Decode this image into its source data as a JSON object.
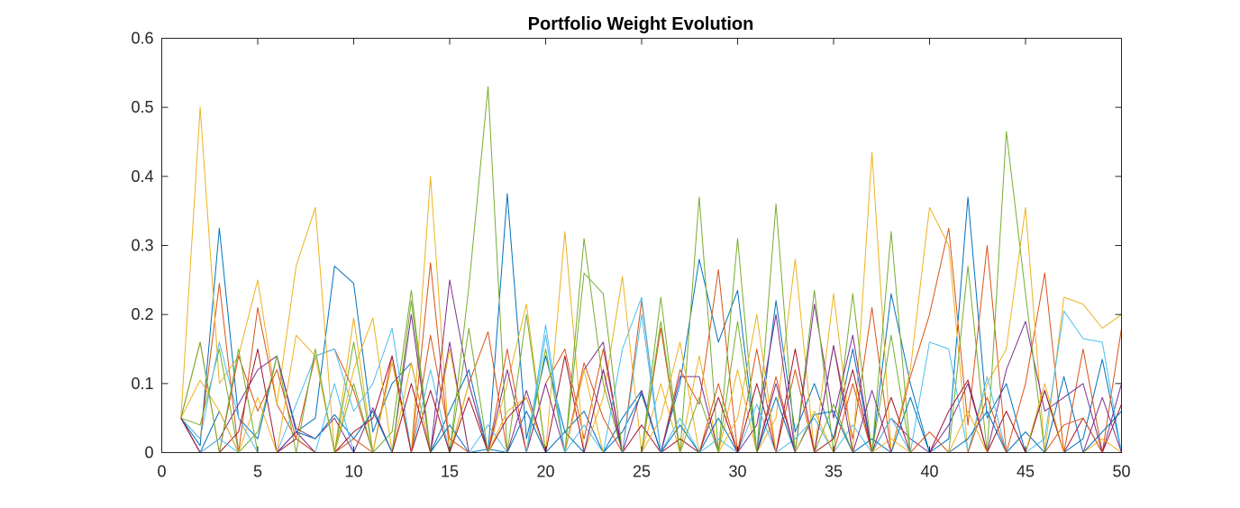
{
  "chart_data": {
    "type": "line",
    "title": "Portfolio Weight Evolution",
    "xlabel": "",
    "ylabel": "",
    "xlim": [
      0,
      50
    ],
    "ylim": [
      0,
      0.6
    ],
    "xticks": [
      0,
      5,
      10,
      15,
      20,
      25,
      30,
      35,
      40,
      45,
      50
    ],
    "yticks": [
      0,
      0.1,
      0.2,
      0.3,
      0.4,
      0.5,
      0.6
    ],
    "xtick_labels": [
      "0",
      "5",
      "10",
      "15",
      "20",
      "25",
      "30",
      "35",
      "40",
      "45",
      "50"
    ],
    "ytick_labels": [
      "0",
      "0.1",
      "0.2",
      "0.3",
      "0.4",
      "0.5",
      "0.6"
    ],
    "grid": false,
    "legend": "none",
    "x": [
      1,
      2,
      3,
      4,
      5,
      6,
      7,
      8,
      9,
      10,
      11,
      12,
      13,
      14,
      15,
      16,
      17,
      18,
      19,
      20,
      21,
      22,
      23,
      24,
      25,
      26,
      27,
      28,
      29,
      30,
      31,
      32,
      33,
      34,
      35,
      36,
      37,
      38,
      39,
      40,
      41,
      42,
      43,
      44,
      45,
      46,
      47,
      48,
      49,
      50
    ],
    "series": [
      {
        "color": "#0072BD",
        "values": [
          0.05,
          0.01,
          0.325,
          0.05,
          0.02,
          0.14,
          0.03,
          0.05,
          0.27,
          0.245,
          0.03,
          0.1,
          0.13,
          0.0,
          0.06,
          0.12,
          0.0,
          0.375,
          0.02,
          0.14,
          0.03,
          0.06,
          0.0,
          0.05,
          0.09,
          0.0,
          0.1,
          0.28,
          0.16,
          0.235,
          0.0,
          0.22,
          0.03,
          0.1,
          0.02,
          0.15,
          0.0,
          0.23,
          0.1,
          0.0,
          0.02,
          0.37,
          0.05,
          0.1,
          0.0,
          0.09,
          0.0,
          0.02,
          0.135,
          0.0
        ]
      },
      {
        "color": "#D95319",
        "values": [
          0.05,
          0.02,
          0.245,
          0.0,
          0.21,
          0.07,
          0.02,
          0.14,
          0.15,
          0.09,
          0.0,
          0.14,
          0.0,
          0.275,
          0.0,
          0.1,
          0.175,
          0.0,
          0.0,
          0.1,
          0.15,
          0.02,
          0.15,
          0.0,
          0.22,
          0.0,
          0.12,
          0.07,
          0.265,
          0.0,
          0.15,
          0.0,
          0.12,
          0.0,
          0.155,
          0.02,
          0.21,
          0.0,
          0.11,
          0.2,
          0.325,
          0.04,
          0.3,
          0.0,
          0.1,
          0.26,
          0.0,
          0.15,
          0.0,
          0.18
        ]
      },
      {
        "color": "#EDB120",
        "values": [
          0.05,
          0.5,
          0.1,
          0.14,
          0.25,
          0.07,
          0.27,
          0.355,
          0.0,
          0.195,
          0.0,
          0.13,
          0.0,
          0.4,
          0.0,
          0.1,
          0.0,
          0.1,
          0.215,
          0.0,
          0.32,
          0.0,
          0.08,
          0.255,
          0.0,
          0.1,
          0.0,
          0.14,
          0.0,
          0.12,
          0.0,
          0.05,
          0.28,
          0.0,
          0.23,
          0.0,
          0.435,
          0.0,
          0.12,
          0.355,
          0.3,
          0.0,
          0.1,
          0.15,
          0.355,
          0.0,
          0.225,
          0.215,
          0.18,
          0.2
        ]
      },
      {
        "color": "#7E2F8E",
        "values": [
          0.05,
          0.0,
          0.02,
          0.07,
          0.12,
          0.14,
          0.035,
          0.02,
          0.05,
          0.0,
          0.065,
          0.0,
          0.2,
          0.0,
          0.25,
          0.1,
          0.0,
          0.12,
          0.0,
          0.1,
          0.0,
          0.12,
          0.16,
          0.0,
          0.09,
          0.0,
          0.11,
          0.11,
          0.0,
          0.0,
          0.04,
          0.2,
          0.0,
          0.215,
          0.05,
          0.17,
          0.0,
          0.05,
          0.02,
          0.0,
          0.04,
          0.1,
          0.0,
          0.12,
          0.19,
          0.06,
          0.08,
          0.1,
          0.0,
          0.1
        ]
      },
      {
        "color": "#77AC30",
        "values": [
          0.05,
          0.04,
          0.15,
          0.0,
          0.03,
          0.14,
          0.0,
          0.0,
          0.0,
          0.1,
          0.0,
          0.03,
          0.235,
          0.0,
          0.0,
          0.24,
          0.53,
          0.0,
          0.2,
          0.0,
          0.0,
          0.31,
          0.1,
          0.0,
          0.0,
          0.225,
          0.0,
          0.37,
          0.0,
          0.31,
          0.0,
          0.36,
          0.0,
          0.235,
          0.0,
          0.23,
          0.0,
          0.32,
          0.0,
          0.0,
          0.0,
          0.27,
          0.0,
          0.465,
          0.23,
          0.0,
          0.0,
          0.0,
          0.0,
          0.0
        ]
      },
      {
        "color": "#4DBEEE",
        "values": [
          0.05,
          0.02,
          0.16,
          0.05,
          0.0,
          0.0,
          0.07,
          0.14,
          0.15,
          0.06,
          0.1,
          0.18,
          0.0,
          0.12,
          0.0,
          0.0,
          0.04,
          0.0,
          0.0,
          0.185,
          0.0,
          0.04,
          0.0,
          0.15,
          0.225,
          0.0,
          0.05,
          0.0,
          0.02,
          0.0,
          0.07,
          0.0,
          0.02,
          0.05,
          0.0,
          0.04,
          0.0,
          0.05,
          0.0,
          0.16,
          0.15,
          0.0,
          0.11,
          0.0,
          0.0,
          0.02,
          0.205,
          0.165,
          0.16,
          0.0
        ]
      },
      {
        "color": "#A2142F",
        "values": [
          0.05,
          0.0,
          0.0,
          0.03,
          0.15,
          0.0,
          0.02,
          0.0,
          0.0,
          0.03,
          0.05,
          0.14,
          0.0,
          0.09,
          0.0,
          0.08,
          0.0,
          0.05,
          0.08,
          0.0,
          0.14,
          0.0,
          0.12,
          0.0,
          0.04,
          0.0,
          0.02,
          0.0,
          0.08,
          0.0,
          0.1,
          0.0,
          0.15,
          0.0,
          0.02,
          0.12,
          0.0,
          0.08,
          0.0,
          0.0,
          0.06,
          0.105,
          0.0,
          0.06,
          0.0,
          0.09,
          0.0,
          0.05,
          0.0,
          0.07
        ]
      },
      {
        "color": "#0072BD",
        "values": [
          0.05,
          0.0,
          0.06,
          0.0,
          0.0,
          0.0,
          0.03,
          0.02,
          0.055,
          0.02,
          0.06,
          0.0,
          0.0,
          0.0,
          0.04,
          0.0,
          0.005,
          0.0,
          0.06,
          0.0,
          0.03,
          0.0,
          0.0,
          0.03,
          0.085,
          0.0,
          0.04,
          0.0,
          0.05,
          0.0,
          0.0,
          0.08,
          0.0,
          0.055,
          0.06,
          0.0,
          0.02,
          0.0,
          0.08,
          0.0,
          0.0,
          0.02,
          0.06,
          0.0,
          0.03,
          0.0,
          0.11,
          0.0,
          0.03,
          0.06
        ]
      },
      {
        "color": "#D95319",
        "values": [
          0.05,
          0.16,
          0.0,
          0.14,
          0.06,
          0.12,
          0.02,
          0.0,
          0.0,
          0.02,
          0.0,
          0.0,
          0.0,
          0.17,
          0.02,
          0.0,
          0.0,
          0.15,
          0.0,
          0.0,
          0.0,
          0.13,
          0.05,
          0.0,
          0.0,
          0.18,
          0.0,
          0.0,
          0.1,
          0.0,
          0.0,
          0.11,
          0.0,
          0.0,
          0.0,
          0.1,
          0.0,
          0.0,
          0.0,
          0.03,
          0.0,
          0.0,
          0.08,
          0.0,
          0.0,
          0.0,
          0.04,
          0.05,
          0.0,
          0.0
        ]
      },
      {
        "color": "#EDB120",
        "values": [
          0.05,
          0.105,
          0.06,
          0.0,
          0.08,
          0.0,
          0.17,
          0.14,
          0.0,
          0.12,
          0.195,
          0.0,
          0.13,
          0.0,
          0.15,
          0.0,
          0.0,
          0.06,
          0.08,
          0.0,
          0.0,
          0.12,
          0.0,
          0.0,
          0.0,
          0.05,
          0.16,
          0.0,
          0.0,
          0.05,
          0.2,
          0.0,
          0.0,
          0.06,
          0.0,
          0.0,
          0.0,
          0.02,
          0.0,
          0.0,
          0.0,
          0.06,
          0.0,
          0.0,
          0.0,
          0.1,
          0.0,
          0.0,
          0.02,
          0.0
        ]
      },
      {
        "color": "#7E2F8E",
        "values": [
          0.05,
          0.0,
          0.0,
          0.0,
          0.0,
          0.0,
          0.03,
          0.0,
          0.0,
          0.0,
          0.0,
          0.0,
          0.0,
          0.0,
          0.16,
          0.0,
          0.0,
          0.0,
          0.09,
          0.0,
          0.0,
          0.0,
          0.12,
          0.0,
          0.0,
          0.0,
          0.0,
          0.0,
          0.0,
          0.0,
          0.0,
          0.1,
          0.0,
          0.0,
          0.155,
          0.0,
          0.09,
          0.0,
          0.0,
          0.0,
          0.0,
          0.0,
          0.0,
          0.0,
          0.0,
          0.0,
          0.0,
          0.0,
          0.08,
          0.0
        ]
      },
      {
        "color": "#77AC30",
        "values": [
          0.05,
          0.16,
          0.0,
          0.15,
          0.0,
          0.0,
          0.0,
          0.15,
          0.0,
          0.16,
          0.0,
          0.0,
          0.22,
          0.0,
          0.0,
          0.18,
          0.0,
          0.0,
          0.0,
          0.15,
          0.0,
          0.26,
          0.23,
          0.0,
          0.0,
          0.19,
          0.0,
          0.08,
          0.0,
          0.19,
          0.0,
          0.0,
          0.0,
          0.0,
          0.07,
          0.0,
          0.0,
          0.17,
          0.0,
          0.0,
          0.0,
          0.0,
          0.0,
          0.0,
          0.0,
          0.0,
          0.0,
          0.0,
          0.0,
          0.0
        ]
      },
      {
        "color": "#4DBEEE",
        "values": [
          0.05,
          0.0,
          0.02,
          0.0,
          0.0,
          0.0,
          0.0,
          0.0,
          0.1,
          0.0,
          0.0,
          0.0,
          0.0,
          0.0,
          0.0,
          0.0,
          0.0,
          0.0,
          0.0,
          0.17,
          0.0,
          0.0,
          0.0,
          0.0,
          0.2,
          0.0,
          0.0,
          0.0,
          0.0,
          0.0,
          0.0,
          0.0,
          0.0,
          0.0,
          0.0,
          0.0,
          0.0,
          0.0,
          0.0,
          0.0,
          0.0,
          0.0,
          0.0,
          0.0,
          0.0,
          0.0,
          0.0,
          0.0,
          0.0,
          0.0
        ]
      },
      {
        "color": "#A2142F",
        "values": [
          0.05,
          0.0,
          0.0,
          0.0,
          0.0,
          0.0,
          0.0,
          0.0,
          0.0,
          0.0,
          0.0,
          0.0,
          0.1,
          0.0,
          0.0,
          0.0,
          0.0,
          0.0,
          0.0,
          0.0,
          0.0,
          0.0,
          0.0,
          0.0,
          0.0,
          0.0,
          0.0,
          0.0,
          0.0,
          0.0,
          0.0,
          0.0,
          0.0,
          0.0,
          0.0,
          0.0,
          0.0,
          0.0,
          0.0,
          0.0,
          0.0,
          0.0,
          0.0,
          0.0,
          0.0,
          0.0,
          0.0,
          0.0,
          0.0,
          0.0
        ]
      }
    ]
  }
}
